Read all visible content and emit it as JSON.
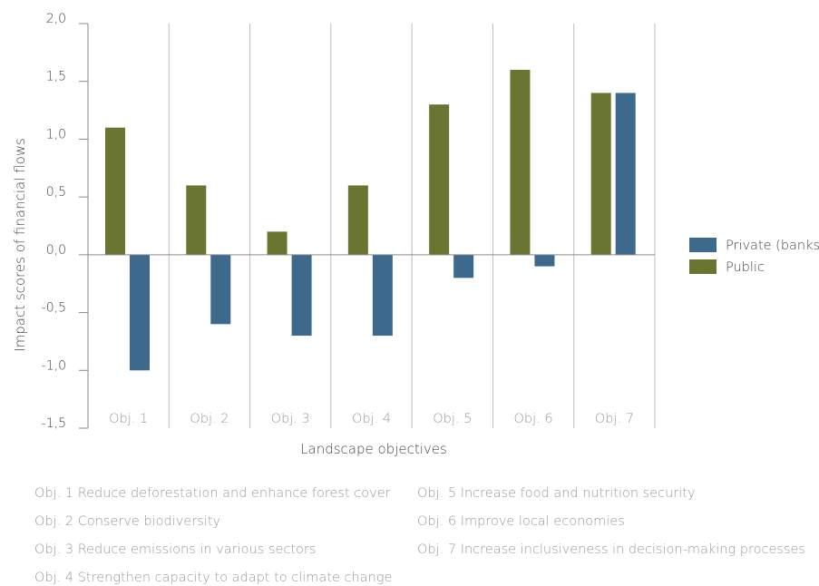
{
  "chart_data": {
    "type": "bar",
    "categories": [
      "Obj. 1",
      "Obj. 2",
      "Obj. 3",
      "Obj. 4",
      "Obj. 5",
      "Obj. 6",
      "Obj. 7"
    ],
    "series": [
      {
        "name": "Public",
        "values": [
          1.1,
          0.6,
          0.2,
          0.6,
          1.3,
          1.6,
          1.4
        ],
        "color": "#6b7532"
      },
      {
        "name": "Private (banks)",
        "values": [
          -1.0,
          -0.6,
          -0.7,
          -0.7,
          -0.2,
          -0.1,
          1.4
        ],
        "color": "#3d6a8c"
      }
    ],
    "legend_order": [
      "Private (banks)",
      "Public"
    ],
    "legend_placement": "right",
    "xlabel": "Landscape objectives",
    "ylabel": "Impact scores of financial flows",
    "ylim": [
      -1.5,
      2.0
    ],
    "yticks": [
      "2,0",
      "1,5",
      "1,0",
      "0,5",
      "0,0",
      "-0,5",
      "-1,0",
      "-1,5"
    ],
    "grid": "vertical separators"
  },
  "notes": [
    "Obj. 1 Reduce deforestation and enhance forest cover",
    "Obj. 2 Conserve biodiversity",
    "Obj. 3 Reduce emissions in various sectors",
    "Obj. 4 Strengthen capacity to adapt to climate change",
    "Obj. 5 Increase food and nutrition security",
    "Obj. 6 Improve local economies",
    "Obj. 7 Increase inclusiveness in decision-making processes"
  ]
}
